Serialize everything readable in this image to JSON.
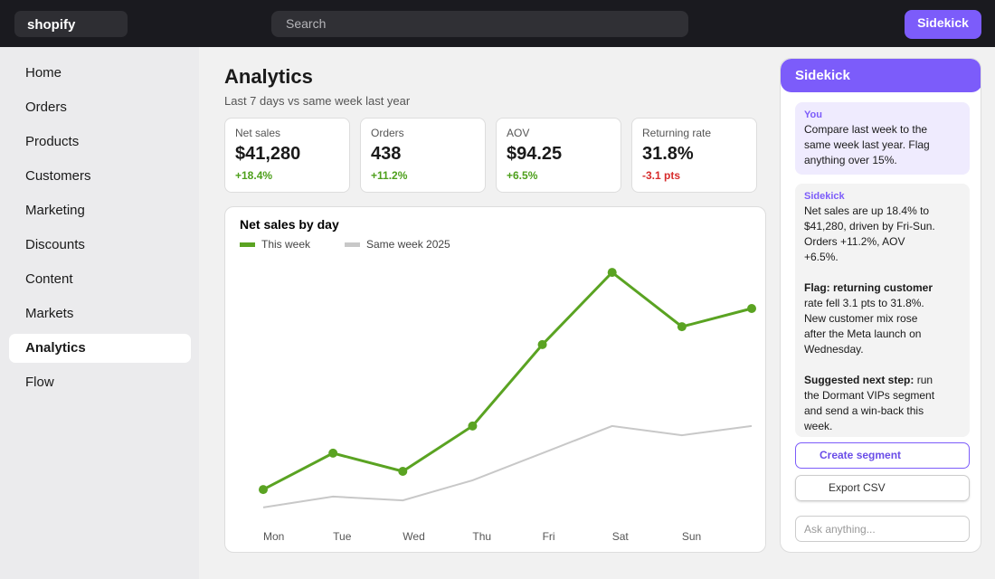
{
  "topbar": {
    "logo": "shopify",
    "search_placeholder": "Search",
    "button": "Sidekick"
  },
  "nav": [
    {
      "label": "Home"
    },
    {
      "label": "Orders"
    },
    {
      "label": "Products"
    },
    {
      "label": "Customers"
    },
    {
      "label": "Marketing"
    },
    {
      "label": "Discounts"
    },
    {
      "label": "Content"
    },
    {
      "label": "Markets"
    },
    {
      "label": "Analytics",
      "active": true
    },
    {
      "label": "Flow"
    }
  ],
  "page": {
    "title": "Analytics",
    "subtitle": "Last 7 days vs same week last year"
  },
  "kpis": [
    {
      "label": "Net sales",
      "value": "$41,280",
      "delta": "+18.4%",
      "trend": "up"
    },
    {
      "label": "Orders",
      "value": "438",
      "delta": "+11.2%",
      "trend": "up"
    },
    {
      "label": "AOV",
      "value": "$94.25",
      "delta": "+6.5%",
      "trend": "up"
    },
    {
      "label": "Returning rate",
      "value": "31.8%",
      "delta": "-3.1 pts",
      "trend": "down"
    }
  ],
  "chart_data": {
    "type": "line",
    "title": "Net sales by day",
    "categories": [
      "Mon",
      "Tue",
      "Wed",
      "Thu",
      "Fri",
      "Sat",
      "Sun",
      null
    ],
    "series": [
      {
        "name": "This week",
        "color": "#5aa322",
        "values": [
          13.3,
          26.7,
          20,
          36.7,
          66.7,
          93.3,
          73.3,
          80
        ],
        "markers": true
      },
      {
        "name": "Same week 2025",
        "color": "#c8c8c8",
        "values": [
          6.7,
          10.7,
          9.3,
          16.7,
          26.7,
          36.7,
          33.3,
          36.7
        ],
        "markers": false
      }
    ],
    "ylim": [
      0,
      100
    ]
  },
  "sidekick": {
    "title": "Sidekick",
    "user": {
      "author": "You",
      "text": "Compare last week to the same week last year. Flag anything over 15%."
    },
    "reply": {
      "author": "Sidekick",
      "paragraphs": [
        {
          "text": "Net sales are up 18.4% to $41,280, driven by Fri-Sun. Orders +11.2%, AOV +6.5%."
        },
        {
          "lead": "Flag: returning customer",
          "text": "rate fell 3.1 pts to 31.8%. New customer mix rose after the Meta launch on Wednesday."
        },
        {
          "lead": "Suggested next step:",
          "text": "run the Dormant VIPs segment and send a win-back this week."
        }
      ]
    },
    "actions": [
      "Create segment",
      "Export CSV"
    ],
    "input_placeholder": "Ask anything..."
  }
}
